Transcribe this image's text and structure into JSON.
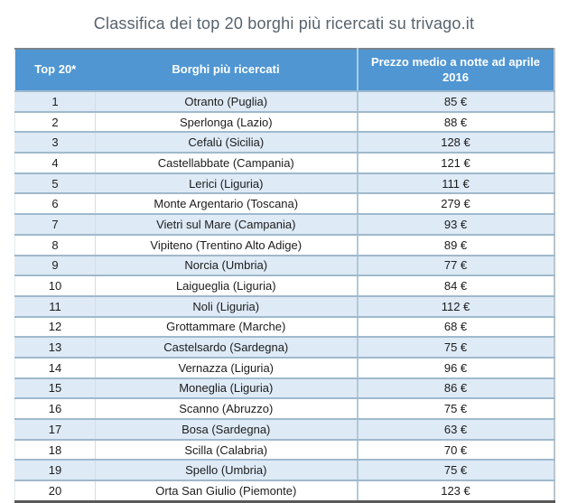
{
  "chart_data": {
    "type": "table",
    "title": "Classifica dei top 20 borghi più ricercati su trivago.it",
    "columns": [
      "Top 20*",
      "Borghi più ricercati",
      "Prezzo medio a notte ad aprile 2016"
    ],
    "rows": [
      [
        "1",
        "Otranto (Puglia)",
        "85 €"
      ],
      [
        "2",
        "Sperlonga (Lazio)",
        "88 €"
      ],
      [
        "3",
        "Cefalù (Sicilia)",
        "128 €"
      ],
      [
        "4",
        "Castellabbate (Campania)",
        "121 €"
      ],
      [
        "5",
        "Lerici (Liguria)",
        "111 €"
      ],
      [
        "6",
        "Monte Argentario (Toscana)",
        "279 €"
      ],
      [
        "7",
        "Vietri sul Mare (Campania)",
        "93 €"
      ],
      [
        "8",
        "Vipiteno (Trentino Alto Adige)",
        "89 €"
      ],
      [
        "9",
        "Norcia (Umbria)",
        "77 €"
      ],
      [
        "10",
        "Laigueglia (Liguria)",
        "84 €"
      ],
      [
        "11",
        "Noli (Liguria)",
        "112 €"
      ],
      [
        "12",
        "Grottammare (Marche)",
        "68 €"
      ],
      [
        "13",
        "Castelsardo (Sardegna)",
        "75 €"
      ],
      [
        "14",
        "Vernazza (Liguria)",
        "96 €"
      ],
      [
        "15",
        "Moneglia (Liguria)",
        "86 €"
      ],
      [
        "16",
        "Scanno (Abruzzo)",
        "75 €"
      ],
      [
        "17",
        "Bosa (Sardegna)",
        "63 €"
      ],
      [
        "18",
        "Scilla (Calabria)",
        "70 €"
      ],
      [
        "19",
        "Spello (Umbria)",
        "75 €"
      ],
      [
        "20",
        "Orta San Giulio (Piemonte)",
        "123 €"
      ]
    ],
    "prices_eur": [
      85,
      88,
      128,
      121,
      111,
      279,
      93,
      89,
      77,
      84,
      112,
      68,
      75,
      96,
      86,
      75,
      63,
      70,
      75,
      123
    ],
    "currency": "EUR",
    "layout": {
      "striped": true,
      "stripe_on": "odd-rows"
    }
  },
  "colors": {
    "header_blue": "#4F96D3",
    "row_alt_blue": "#DEEAF6",
    "separator": "#9FB9CD",
    "dark_border": "#595959",
    "title_text": "#57636E"
  }
}
